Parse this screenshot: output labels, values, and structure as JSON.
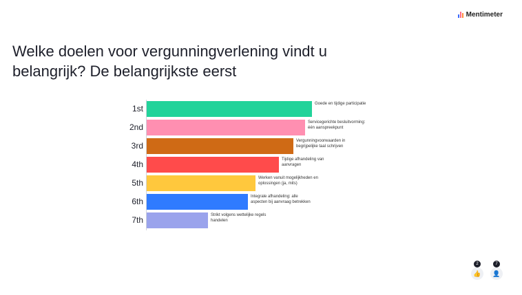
{
  "brand": {
    "name": "Mentimeter"
  },
  "question": "Welke doelen voor vergunningverlening vindt u belangrijk? De belangrijkste eerst",
  "chart_data": {
    "type": "bar",
    "categories": [
      "1st",
      "2nd",
      "3rd",
      "4th",
      "5th",
      "6th",
      "7th"
    ],
    "values": [
      7,
      6.7,
      6.2,
      5.6,
      4.6,
      4.3,
      2.6
    ],
    "labels": [
      "Goede en tijdige participatie",
      "Servicegerichte besluitvorming: één aanspreekpunt",
      "Vergunningvoorwaarden in begrijpelijke taal schrijven",
      "Tijdige afhandeling van aanvragen",
      "Werken vanuit mogelijkheden en oplossingen (ja, mits)",
      "Integrale afhandeling: alle aspecten bij aanvraag betrekken",
      "Strikt volgens wettelijke regels handelen"
    ],
    "colors": [
      "#22d39a",
      "#ff8fb1",
      "#cf6a15",
      "#ff4b4b",
      "#ffc83d",
      "#2f7bff",
      "#9aa3ec"
    ],
    "xlim": [
      0,
      7
    ]
  },
  "footer": {
    "reactions_count": "2",
    "participants_count": "7",
    "reactions_icon": "thumbs-up-icon",
    "participants_icon": "person-icon"
  }
}
